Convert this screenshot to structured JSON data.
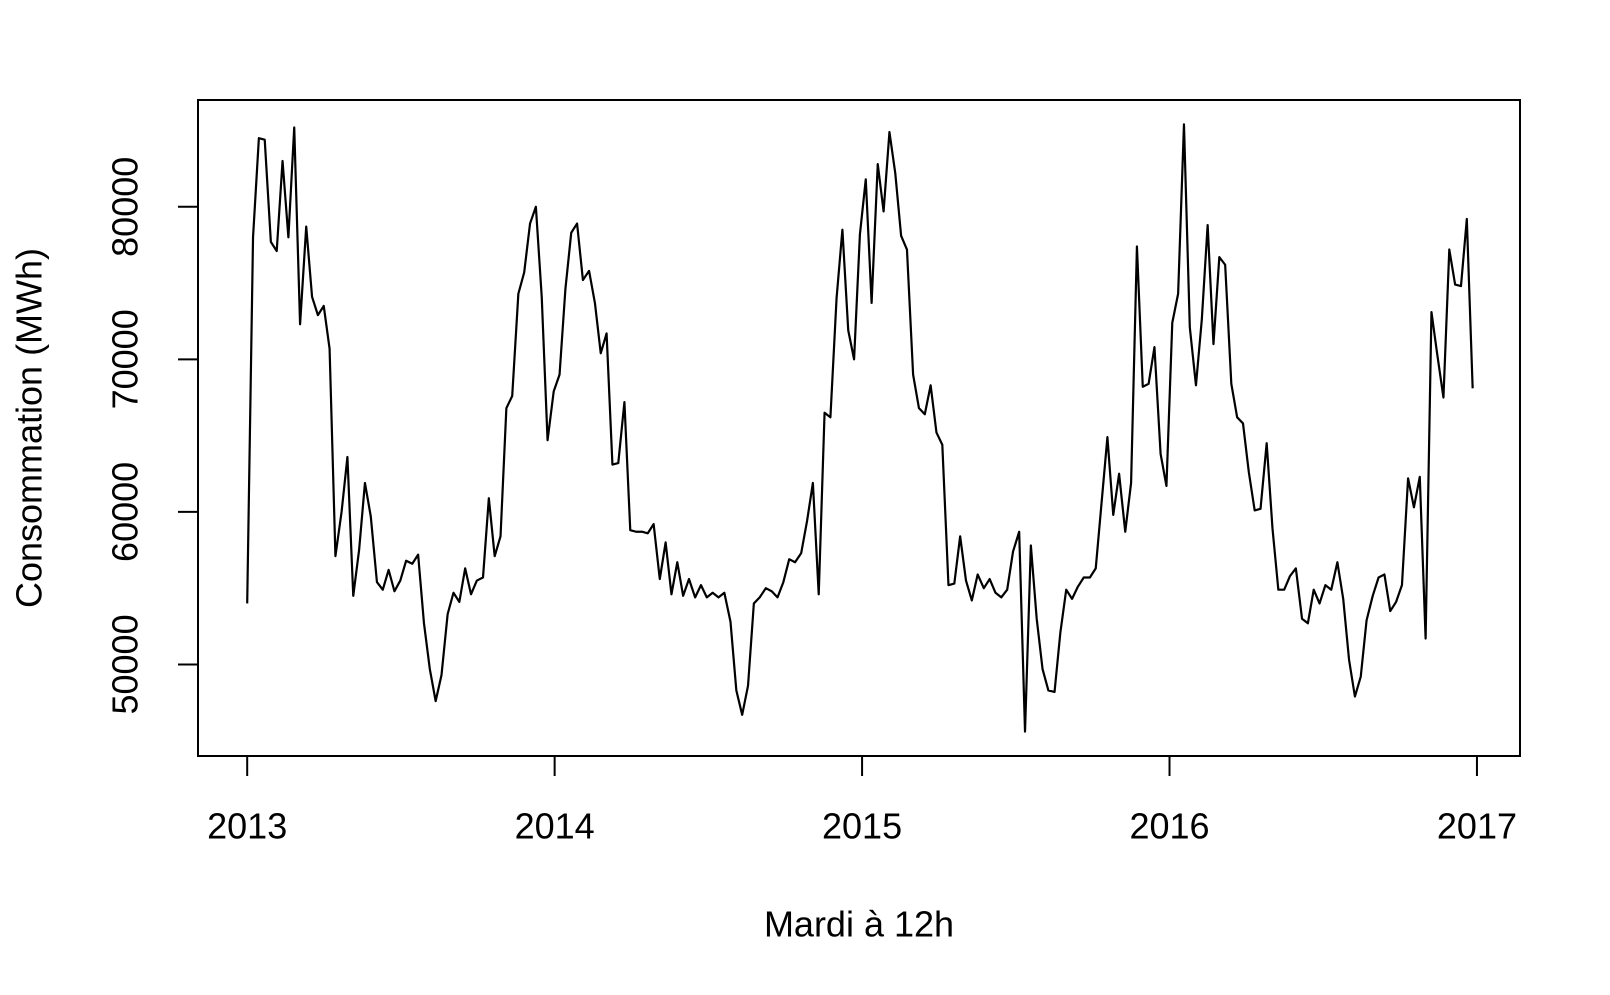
{
  "chart_data": {
    "type": "line",
    "x_label": "Mardi à 12h",
    "y_label": "Consommation (MWh)",
    "xlim": [
      2012.84,
      2017.14
    ],
    "ylim": [
      44000,
      87000
    ],
    "xticks": [
      2013,
      2014,
      2015,
      2016,
      2017
    ],
    "yticks": [
      50000,
      60000,
      70000,
      80000
    ],
    "grid": false,
    "x": [
      2013.0,
      2013.019,
      2013.038,
      2013.057,
      2013.077,
      2013.096,
      2013.115,
      2013.134,
      2013.153,
      2013.172,
      2013.192,
      2013.211,
      2013.23,
      2013.249,
      2013.268,
      2013.287,
      2013.307,
      2013.326,
      2013.345,
      2013.364,
      2013.383,
      2013.402,
      2013.422,
      2013.441,
      2013.46,
      2013.479,
      2013.498,
      2013.517,
      2013.537,
      2013.556,
      2013.575,
      2013.594,
      2013.613,
      2013.632,
      2013.652,
      2013.671,
      2013.69,
      2013.709,
      2013.728,
      2013.747,
      2013.767,
      2013.786,
      2013.805,
      2013.824,
      2013.843,
      2013.862,
      2013.882,
      2013.901,
      2013.92,
      2013.939,
      2013.958,
      2013.977,
      2013.997,
      2014.016,
      2014.035,
      2014.054,
      2014.073,
      2014.092,
      2014.112,
      2014.131,
      2014.15,
      2014.169,
      2014.188,
      2014.207,
      2014.227,
      2014.246,
      2014.265,
      2014.284,
      2014.303,
      2014.322,
      2014.342,
      2014.361,
      2014.38,
      2014.399,
      2014.418,
      2014.437,
      2014.457,
      2014.476,
      2014.495,
      2014.514,
      2014.533,
      2014.552,
      2014.572,
      2014.591,
      2014.61,
      2014.629,
      2014.648,
      2014.667,
      2014.687,
      2014.706,
      2014.725,
      2014.744,
      2014.763,
      2014.782,
      2014.802,
      2014.821,
      2014.84,
      2014.859,
      2014.878,
      2014.897,
      2014.917,
      2014.936,
      2014.955,
      2014.974,
      2014.993,
      2015.012,
      2015.031,
      2015.051,
      2015.07,
      2015.089,
      2015.108,
      2015.127,
      2015.146,
      2015.166,
      2015.185,
      2015.204,
      2015.223,
      2015.242,
      2015.261,
      2015.281,
      2015.3,
      2015.319,
      2015.338,
      2015.357,
      2015.376,
      2015.396,
      2015.415,
      2015.434,
      2015.453,
      2015.472,
      2015.491,
      2015.511,
      2015.53,
      2015.549,
      2015.568,
      2015.587,
      2015.606,
      2015.626,
      2015.645,
      2015.664,
      2015.683,
      2015.702,
      2015.721,
      2015.741,
      2015.76,
      2015.779,
      2015.798,
      2015.817,
      2015.836,
      2015.856,
      2015.875,
      2015.894,
      2015.913,
      2015.932,
      2015.951,
      2015.971,
      2015.99,
      2016.009,
      2016.028,
      2016.047,
      2016.066,
      2016.086,
      2016.105,
      2016.124,
      2016.143,
      2016.162,
      2016.181,
      2016.201,
      2016.22,
      2016.239,
      2016.258,
      2016.277,
      2016.296,
      2016.316,
      2016.335,
      2016.354,
      2016.373,
      2016.392,
      2016.411,
      2016.431,
      2016.45,
      2016.469,
      2016.488,
      2016.507,
      2016.526,
      2016.546,
      2016.565,
      2016.584,
      2016.603,
      2016.622,
      2016.641,
      2016.661,
      2016.68,
      2016.699,
      2016.718,
      2016.737,
      2016.756,
      2016.776,
      2016.795,
      2016.814,
      2016.833,
      2016.852,
      2016.871,
      2016.891,
      2016.91,
      2016.929,
      2016.948,
      2016.967,
      2016.986
    ],
    "series": [
      {
        "color": "#000000",
        "values": [
          54000,
          78000,
          84500,
          84400,
          77700,
          77100,
          83000,
          78000,
          85200,
          72300,
          78700,
          74100,
          72900,
          73500,
          70700,
          57100,
          60000,
          63600,
          54500,
          57500,
          61900,
          59700,
          55400,
          54900,
          56200,
          54800,
          55500,
          56800,
          56600,
          57200,
          52700,
          49700,
          47600,
          49300,
          53300,
          54700,
          54100,
          56300,
          54600,
          55500,
          55700,
          60900,
          57100,
          58400,
          66800,
          67600,
          74300,
          75700,
          78900,
          80000,
          74100,
          64700,
          67900,
          69000,
          74600,
          78300,
          78900,
          75200,
          75800,
          73700,
          70400,
          71700,
          63100,
          63200,
          67200,
          58800,
          58700,
          58700,
          58600,
          59200,
          55600,
          58000,
          54600,
          56700,
          54500,
          55600,
          54400,
          55200,
          54400,
          54700,
          54400,
          54700,
          52800,
          48300,
          46700,
          48600,
          54000,
          54400,
          55000,
          54800,
          54400,
          55400,
          56900,
          56700,
          57300,
          59400,
          61900,
          54600,
          66500,
          66200,
          74000,
          78500,
          71900,
          70000,
          78200,
          81800,
          73700,
          82800,
          79700,
          84900,
          82200,
          78100,
          77200,
          69000,
          66800,
          66400,
          68300,
          65200,
          64400,
          55200,
          55300,
          58400,
          55500,
          54200,
          55900,
          55000,
          55600,
          54700,
          54400,
          54900,
          57400,
          58700,
          45600,
          57800,
          53000,
          49700,
          48300,
          48200,
          52100,
          54900,
          54300,
          55100,
          55700,
          55700,
          56300,
          60600,
          64900,
          59800,
          62500,
          58700,
          61900,
          77400,
          68200,
          68400,
          70800,
          63800,
          61700,
          72400,
          74300,
          85400,
          72100,
          68300,
          72600,
          78800,
          71000,
          76700,
          76200,
          68400,
          66200,
          65800,
          62600,
          60100,
          60200,
          64500,
          58900,
          54900,
          54900,
          55800,
          56300,
          53000,
          52700,
          54900,
          54000,
          55200,
          54900,
          56700,
          54300,
          50300,
          47900,
          49200,
          52900,
          54500,
          55700,
          55900,
          53500,
          54100,
          55200,
          62200,
          60300,
          62300,
          51700,
          73100,
          70300,
          67500,
          77200,
          74900,
          74800,
          79200,
          68100
        ]
      }
    ]
  }
}
